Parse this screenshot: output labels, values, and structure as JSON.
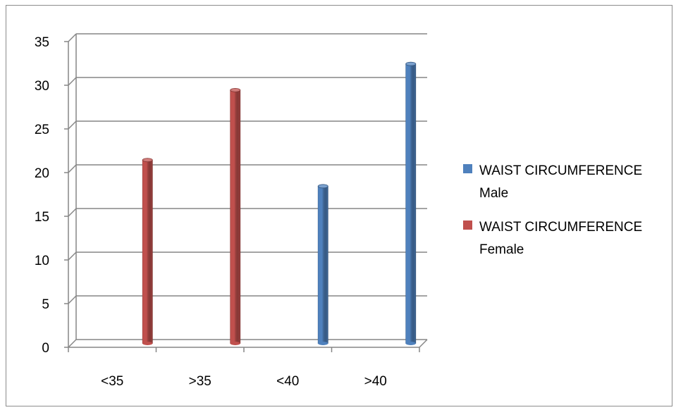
{
  "chart_data": {
    "type": "bar",
    "categories": [
      "<35",
      ">35",
      "<40",
      ">40"
    ],
    "series": [
      {
        "name": "WAIST CIRCUMFERENCE Male",
        "legend_lines": [
          "WAIST CIRCUMFERENCE",
          "Male"
        ],
        "color": "#4f81bd",
        "values": [
          null,
          null,
          18,
          32
        ]
      },
      {
        "name": "WAIST CIRCUMFERENCE Female",
        "legend_lines": [
          "WAIST CIRCUMFERENCE",
          "Female"
        ],
        "color": "#c0504d",
        "values": [
          21,
          29,
          null,
          null
        ]
      }
    ],
    "yticks": [
      0,
      5,
      10,
      15,
      20,
      25,
      30,
      35
    ],
    "ylim": [
      0,
      35
    ],
    "grid": true,
    "legend_position": "right",
    "title": "",
    "xlabel": "",
    "ylabel": ""
  }
}
